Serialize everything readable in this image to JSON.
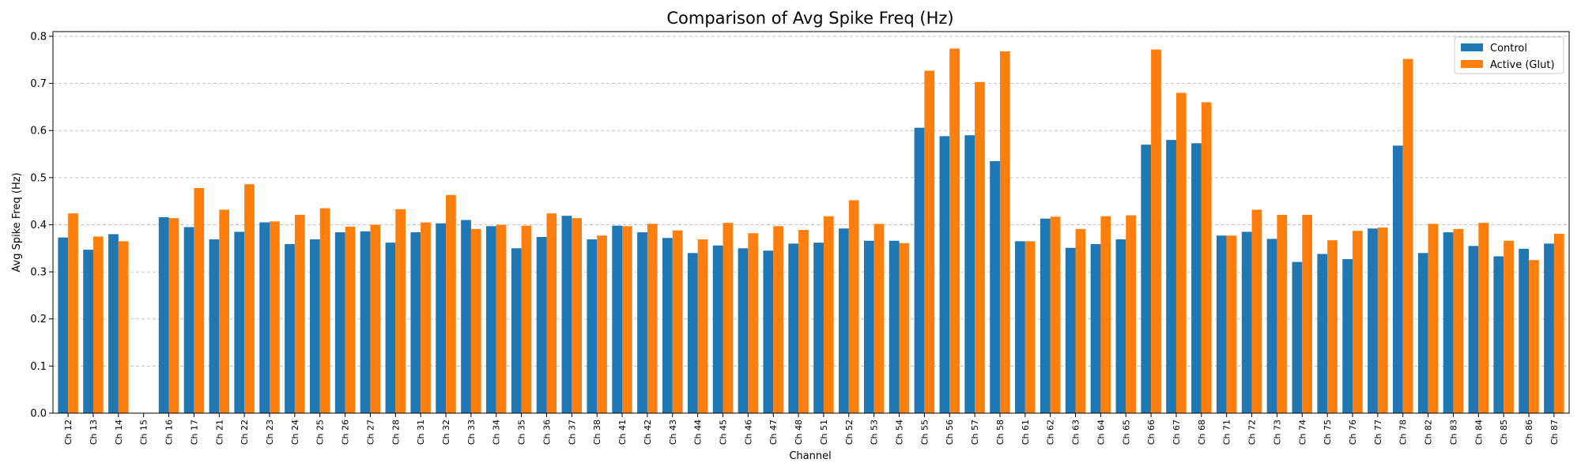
{
  "chart_data": {
    "type": "bar",
    "title": "Comparison of Avg Spike Freq (Hz)",
    "xlabel": "Channel",
    "ylabel": "Avg Spike Freq (Hz)",
    "ylim": [
      0,
      0.81
    ],
    "yticks": [
      "0.0",
      "0.1",
      "0.2",
      "0.3",
      "0.4",
      "0.5",
      "0.6",
      "0.7",
      "0.8"
    ],
    "grid": "horizontal dashed",
    "legend_position": "top-right",
    "categories": [
      "Ch 12",
      "Ch 13",
      "Ch 14",
      "Ch 15",
      "Ch 16",
      "Ch 17",
      "Ch 21",
      "Ch 22",
      "Ch 23",
      "Ch 24",
      "Ch 25",
      "Ch 26",
      "Ch 27",
      "Ch 28",
      "Ch 31",
      "Ch 32",
      "Ch 33",
      "Ch 34",
      "Ch 35",
      "Ch 36",
      "Ch 37",
      "Ch 38",
      "Ch 41",
      "Ch 42",
      "Ch 43",
      "Ch 44",
      "Ch 45",
      "Ch 46",
      "Ch 47",
      "Ch 48",
      "Ch 51",
      "Ch 52",
      "Ch 53",
      "Ch 54",
      "Ch 55",
      "Ch 56",
      "Ch 57",
      "Ch 58",
      "Ch 61",
      "Ch 62",
      "Ch 63",
      "Ch 64",
      "Ch 65",
      "Ch 66",
      "Ch 67",
      "Ch 68",
      "Ch 71",
      "Ch 72",
      "Ch 73",
      "Ch 74",
      "Ch 75",
      "Ch 76",
      "Ch 77",
      "Ch 78",
      "Ch 82",
      "Ch 83",
      "Ch 84",
      "Ch 85",
      "Ch 86",
      "Ch 87"
    ],
    "series": [
      {
        "name": "Control",
        "color": "#1f77b4",
        "values": [
          0.373,
          0.347,
          0.38,
          0.0,
          0.416,
          0.395,
          0.369,
          0.385,
          0.405,
          0.359,
          0.369,
          0.384,
          0.386,
          0.362,
          0.384,
          0.403,
          0.41,
          0.397,
          0.35,
          0.374,
          0.419,
          0.369,
          0.398,
          0.384,
          0.372,
          0.34,
          0.356,
          0.35,
          0.345,
          0.36,
          0.362,
          0.392,
          0.366,
          0.366,
          0.606,
          0.588,
          0.59,
          0.535,
          0.365,
          0.413,
          0.351,
          0.359,
          0.369,
          0.57,
          0.58,
          0.573,
          0.377,
          0.385,
          0.37,
          0.321,
          0.338,
          0.327,
          0.392,
          0.568,
          0.34,
          0.384,
          0.355,
          0.333,
          0.349,
          0.36
        ]
      },
      {
        "name": "Active (Glut)",
        "color": "#ff7f0e",
        "values": [
          0.424,
          0.375,
          0.365,
          0.0,
          0.414,
          0.478,
          0.432,
          0.486,
          0.407,
          0.421,
          0.435,
          0.396,
          0.4,
          0.433,
          0.405,
          0.463,
          0.391,
          0.4,
          0.398,
          0.424,
          0.414,
          0.377,
          0.397,
          0.402,
          0.388,
          0.369,
          0.404,
          0.382,
          0.397,
          0.389,
          0.418,
          0.452,
          0.402,
          0.361,
          0.727,
          0.774,
          0.703,
          0.768,
          0.365,
          0.417,
          0.391,
          0.418,
          0.42,
          0.772,
          0.68,
          0.66,
          0.377,
          0.432,
          0.421,
          0.421,
          0.367,
          0.387,
          0.394,
          0.752,
          0.402,
          0.391,
          0.404,
          0.366,
          0.325,
          0.381
        ]
      }
    ]
  }
}
